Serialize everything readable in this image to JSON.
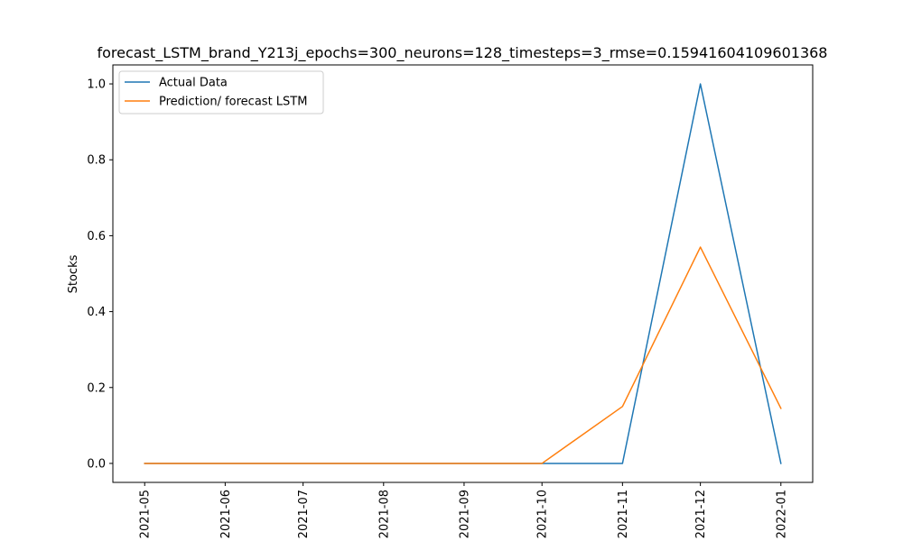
{
  "chart_data": {
    "type": "line",
    "title": "forecast_LSTM_brand_Y213j_epochs=300_neurons=128_timesteps=3_rmse=0.15941604109601368",
    "xlabel": "",
    "ylabel": "Stocks",
    "x": [
      "2021-05-01",
      "2021-06-01",
      "2021-07-01",
      "2021-08-01",
      "2021-09-01",
      "2021-10-01",
      "2021-11-01",
      "2021-12-01",
      "2022-01-01"
    ],
    "x_tick_labels": [
      "2021-05",
      "2021-06",
      "2021-07",
      "2021-08",
      "2021-09",
      "2021-10",
      "2021-11",
      "2021-12",
      "2022-01"
    ],
    "y_ticks": [
      0.0,
      0.2,
      0.4,
      0.6,
      0.8,
      1.0
    ],
    "y_tick_labels": [
      "0.0",
      "0.2",
      "0.4",
      "0.6",
      "0.8",
      "1.0"
    ],
    "ylim": [
      -0.05,
      1.05
    ],
    "grid": false,
    "legend_position": "top-left",
    "series": [
      {
        "name": "Actual Data",
        "color": "#1f77b4",
        "values": [
          0,
          0,
          0,
          0,
          0,
          0,
          0,
          1.0,
          0
        ]
      },
      {
        "name": "Prediction/ forecast LSTM",
        "color": "#ff7f0e",
        "values": [
          0,
          0,
          0,
          0,
          0,
          0,
          0.15,
          0.57,
          0.145
        ]
      }
    ]
  }
}
